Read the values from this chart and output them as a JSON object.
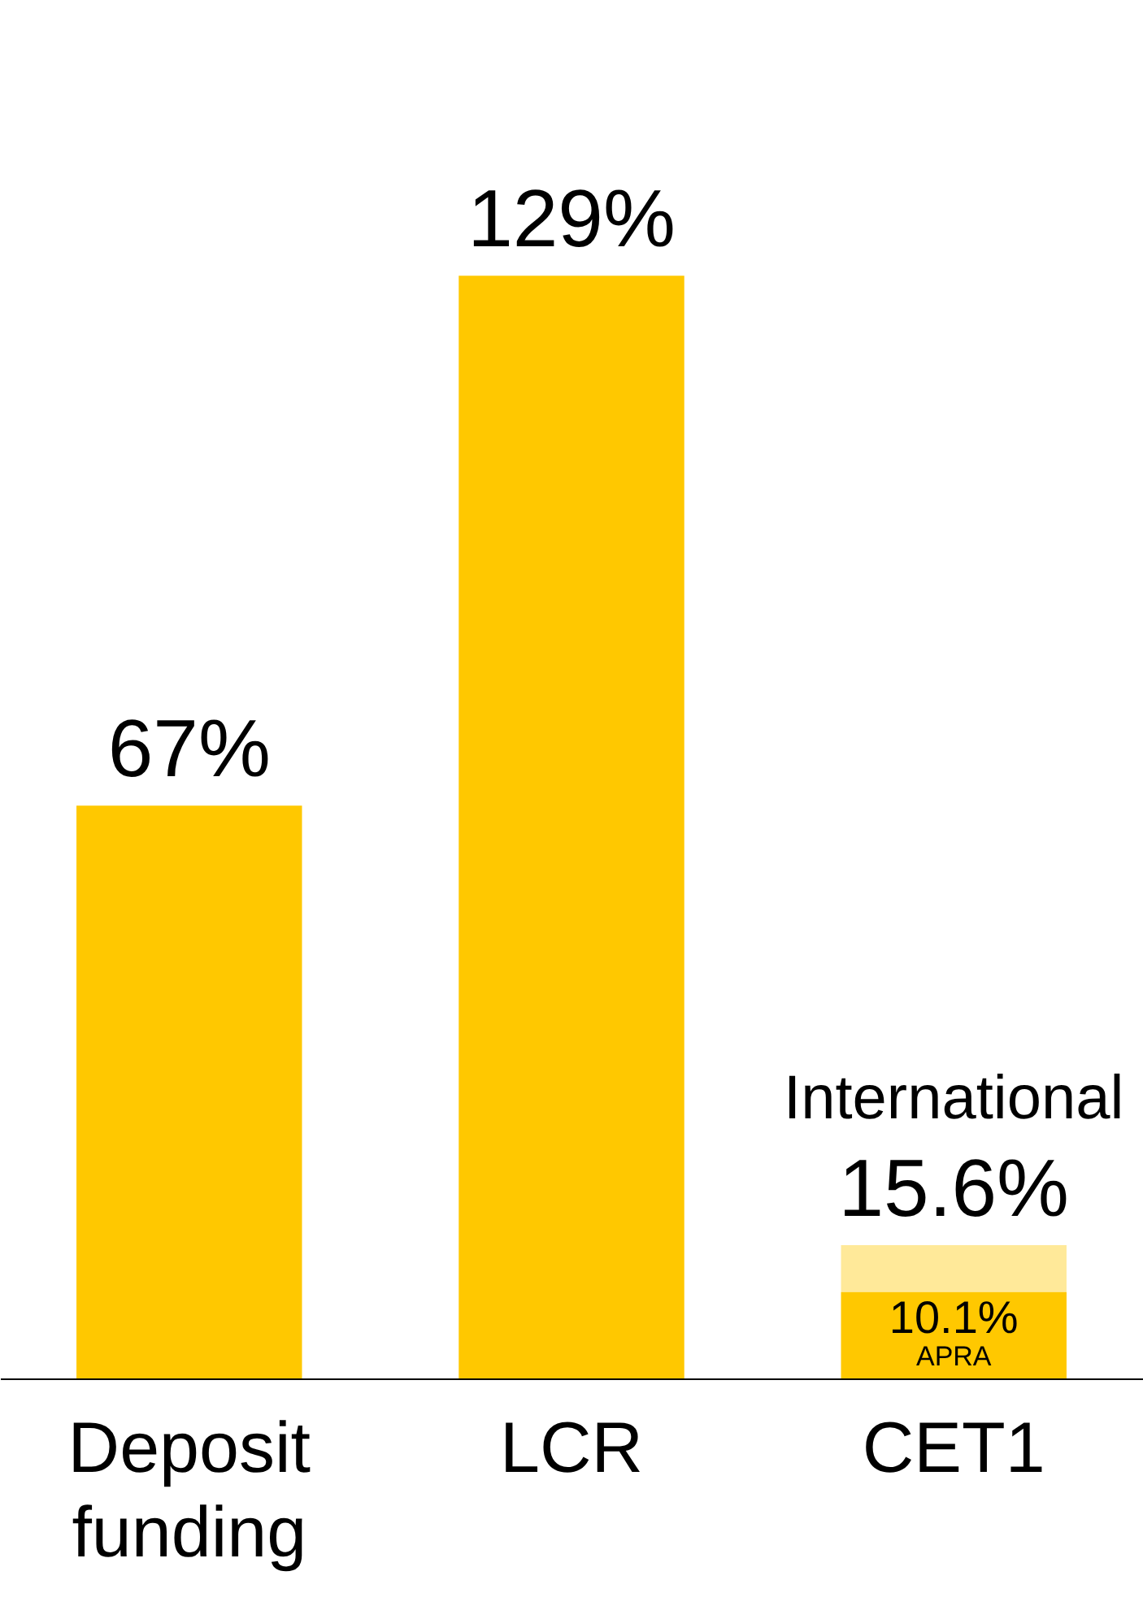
{
  "chart_data": {
    "type": "bar",
    "stacked": true,
    "categories": [
      "Deposit funding",
      "LCR",
      "CET1"
    ],
    "series": [
      {
        "color": "#ffc800",
        "values": [
          67,
          129,
          10.1
        ],
        "value_labels": [
          "67%",
          "129%",
          "10.1%"
        ]
      },
      {
        "color": "#ffc800",
        "values": [
          null,
          null,
          5.5
        ]
      }
    ],
    "totals": [
      null,
      null,
      "15.6%"
    ],
    "annotations": [
      {
        "text": "International",
        "x": "CET1",
        "y": 15.6
      },
      {
        "text": "APRA",
        "x": "CET1",
        "y": 10.1
      }
    ]
  }
}
